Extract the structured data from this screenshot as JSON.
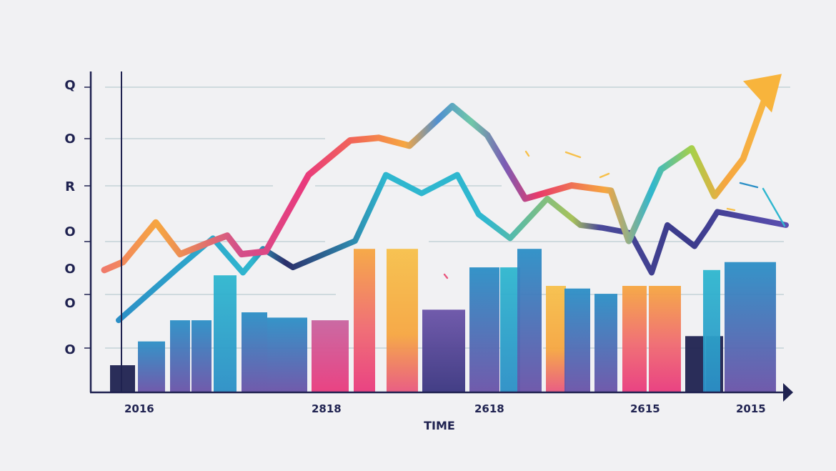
{
  "chart_data": {
    "type": "bar",
    "xlabel": "TIME",
    "x_tick_labels": [
      "2016",
      "2818",
      "2618",
      "2615",
      "2015"
    ],
    "y_tick_labels": [
      "Q",
      "O",
      "R",
      "O",
      "O",
      "O",
      "O"
    ],
    "grid": true,
    "bar_values": [
      10,
      19,
      27,
      27,
      44,
      30,
      28,
      27,
      54,
      54,
      31,
      47,
      47,
      54,
      40,
      39,
      37,
      40,
      40,
      21,
      21,
      46,
      49,
      49
    ],
    "series": [
      {
        "values": [
          46,
          49,
          64,
          52,
          57,
          59,
          52,
          53,
          82,
          95,
          96,
          93,
          108,
          97,
          73,
          78,
          76,
          57,
          84,
          92,
          74,
          88,
          118
        ]
      },
      {
        "values": [
          27,
          47,
          58,
          45,
          54,
          47,
          57,
          82,
          75,
          82,
          67,
          58,
          73,
          63,
          62,
          60,
          45,
          63,
          55,
          62,
          68,
          63
        ]
      }
    ],
    "colors": {
      "navy": "#1f2250",
      "teal": "#2fb7cf",
      "blue": "#2b8fc6",
      "purple": "#6a53a8",
      "pink": "#e93a7d",
      "orange": "#f6a640",
      "yellow": "#f7c04a",
      "grid": "#c4d2d8"
    }
  }
}
